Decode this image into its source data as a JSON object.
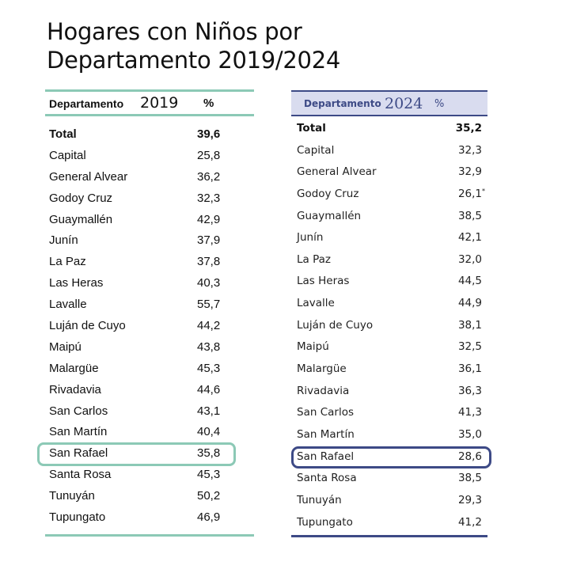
{
  "title": {
    "line1": "Hogares con Niños por",
    "line2": "Departamento 2019/2024"
  },
  "table_2019": {
    "header": {
      "departamento": "Departamento",
      "year": "2019",
      "percent": "%"
    },
    "highlight_color": "#8cc9b6",
    "rows": [
      {
        "name": "Total",
        "value": "39,6"
      },
      {
        "name": "Capital",
        "value": "25,8"
      },
      {
        "name": "General Alvear",
        "value": "36,2"
      },
      {
        "name": "Godoy Cruz",
        "value": "32,3"
      },
      {
        "name": "Guaymallén",
        "value": "42,9"
      },
      {
        "name": "Junín",
        "value": "37,9"
      },
      {
        "name": "La Paz",
        "value": "37,8"
      },
      {
        "name": "Las Heras",
        "value": "40,3"
      },
      {
        "name": "Lavalle",
        "value": "55,7"
      },
      {
        "name": "Luján de Cuyo",
        "value": "44,2"
      },
      {
        "name": "Maipú",
        "value": "43,8"
      },
      {
        "name": "Malargüe",
        "value": "45,3"
      },
      {
        "name": "Rivadavia",
        "value": "44,6"
      },
      {
        "name": "San Carlos",
        "value": "43,1"
      },
      {
        "name": "San Martín",
        "value": "40,4"
      },
      {
        "name": "San Rafael",
        "value": "35,8"
      },
      {
        "name": "Santa Rosa",
        "value": "45,3"
      },
      {
        "name": "Tunuyán",
        "value": "50,2"
      },
      {
        "name": "Tupungato",
        "value": "46,9"
      }
    ]
  },
  "table_2024": {
    "header": {
      "departamento": "Departamento",
      "year": "2024",
      "percent": "%"
    },
    "highlight_color": "#3d4a86",
    "rows": [
      {
        "name": "Total",
        "value": "35,2"
      },
      {
        "name": "Capital",
        "value": "32,3"
      },
      {
        "name": "General Alvear",
        "value": "32,9"
      },
      {
        "name": "Godoy Cruz",
        "value": "26,1",
        "note": "*"
      },
      {
        "name": "Guaymallén",
        "value": "38,5"
      },
      {
        "name": "Junín",
        "value": "42,1"
      },
      {
        "name": "La Paz",
        "value": "32,0"
      },
      {
        "name": "Las Heras",
        "value": "44,5"
      },
      {
        "name": "Lavalle",
        "value": "44,9"
      },
      {
        "name": "Luján de Cuyo",
        "value": "38,1"
      },
      {
        "name": "Maipú",
        "value": "32,5"
      },
      {
        "name": "Malargüe",
        "value": "36,1"
      },
      {
        "name": "Rivadavia",
        "value": "36,3"
      },
      {
        "name": "San Carlos",
        "value": "41,3"
      },
      {
        "name": "San Martín",
        "value": "35,0"
      },
      {
        "name": "San Rafael",
        "value": "28,6"
      },
      {
        "name": "Santa Rosa",
        "value": "38,5"
      },
      {
        "name": "Tunuyán",
        "value": "29,3"
      },
      {
        "name": "Tupungato",
        "value": "41,2"
      }
    ]
  }
}
